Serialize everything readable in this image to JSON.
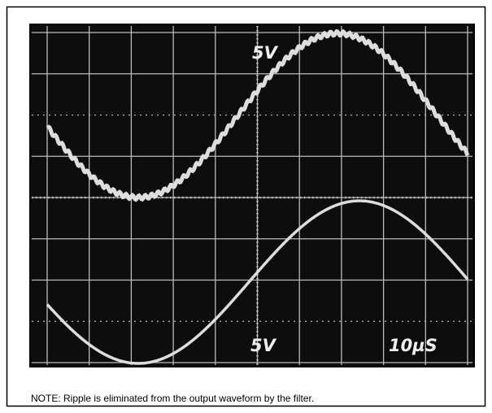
{
  "screen": {
    "top_label": "5V",
    "bottom_label": "5V",
    "time_label": "10µS"
  },
  "caption": "NOTE: Ripple is eliminated from the output waveform by the filter."
}
